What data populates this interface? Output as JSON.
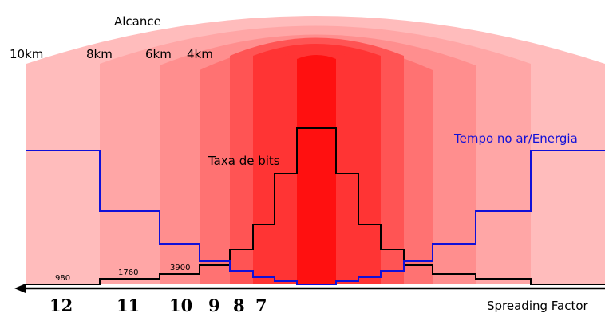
{
  "diagram": {
    "title": "Alcance",
    "range_labels": [
      "10km",
      "8km",
      "6km",
      "4km"
    ],
    "bitrate_label": "Taxa de bits",
    "airtime_label": "Tempo no ar/Energia",
    "axis_label": "Spreading Factor",
    "sf_labels": [
      "12",
      "11",
      "10",
      "9",
      "8",
      "7"
    ],
    "bitrate_values": [
      "980",
      "1760",
      "3900"
    ],
    "colors": {
      "band_1": "#ffbcbc",
      "band_2": "#ffa6a6",
      "band_3": "#ff8e8e",
      "band_4": "#ff7272",
      "band_5": "#ff5454",
      "band_6": "#ff3434",
      "band_7": "#ff1010",
      "bitrate_line": "#000000",
      "airtime_line": "#1010d8"
    }
  }
}
